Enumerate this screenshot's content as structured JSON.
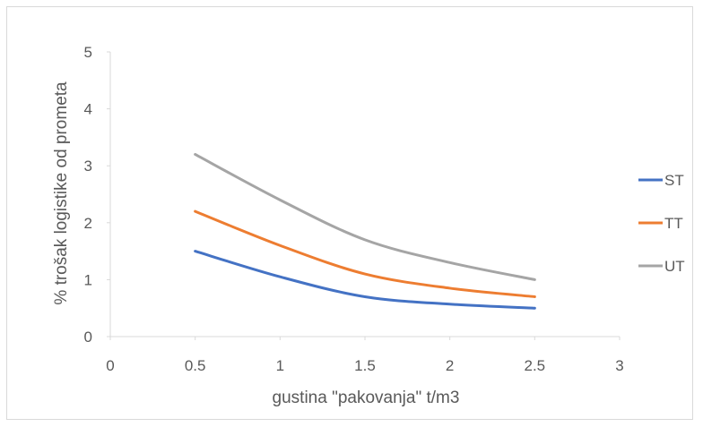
{
  "chart_data": {
    "type": "line",
    "title": "",
    "xlabel": "gustina \"pakovanja\" t/m3",
    "ylabel": "% trošak logistike od prometa",
    "xlim": [
      0,
      3
    ],
    "ylim": [
      0,
      5
    ],
    "x_ticks": [
      "0",
      "0.5",
      "1",
      "1.5",
      "2",
      "2.5",
      "3"
    ],
    "y_ticks": [
      "0",
      "1",
      "2",
      "3",
      "4",
      "5"
    ],
    "x": [
      0.5,
      1,
      1.5,
      2,
      2.5
    ],
    "smooth": true,
    "grid": false,
    "legend_position": "right",
    "series": [
      {
        "name": "ST",
        "color": "#4472c4",
        "values": [
          1.5,
          1.05,
          0.7,
          0.57,
          0.5
        ]
      },
      {
        "name": "TT",
        "color": "#ed7d31",
        "values": [
          2.2,
          1.6,
          1.1,
          0.85,
          0.7
        ]
      },
      {
        "name": "UT",
        "color": "#a5a5a5",
        "values": [
          3.2,
          2.4,
          1.7,
          1.3,
          1.0
        ]
      }
    ]
  }
}
